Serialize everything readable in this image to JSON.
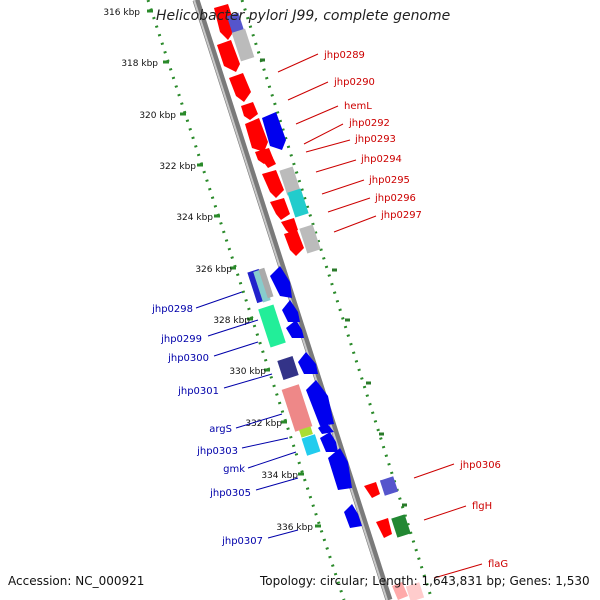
{
  "header": {
    "title": "Helicobacter pylori J99, complete genome"
  },
  "footer": {
    "accession": "Accession: NC_000921",
    "topology": "Topology: circular",
    "length": "Length: 1,643,831 bp",
    "genes": "Genes: 1,530"
  },
  "colors": {
    "backbone": "#8a8a8a",
    "dots": "#2a8a2a",
    "label_right": "#cc0000",
    "label_left": "#0000aa",
    "tick_text": "#111111"
  },
  "ticks": [
    {
      "label": "316 kbp"
    },
    {
      "label": "318 kbp"
    },
    {
      "label": "320 kbp"
    },
    {
      "label": "322 kbp"
    },
    {
      "label": "324 kbp"
    },
    {
      "label": "326 kbp"
    },
    {
      "label": "328 kbp"
    },
    {
      "label": "330 kbp"
    },
    {
      "label": "332 kbp"
    },
    {
      "label": "334 kbp"
    },
    {
      "label": "336 kbp"
    }
  ],
  "right_labels": [
    "jhp0289",
    "jhp0290",
    "hemL",
    "jhp0292",
    "jhp0293",
    "jhp0294",
    "jhp0295",
    "jhp0296",
    "jhp0297",
    "jhp0306",
    "flgH",
    "flaG"
  ],
  "left_labels": [
    "jhp0298",
    "jhp0299",
    "jhp0300",
    "jhp0301",
    "argS",
    "jhp0303",
    "gmk",
    "jhp0305",
    "jhp0307"
  ]
}
